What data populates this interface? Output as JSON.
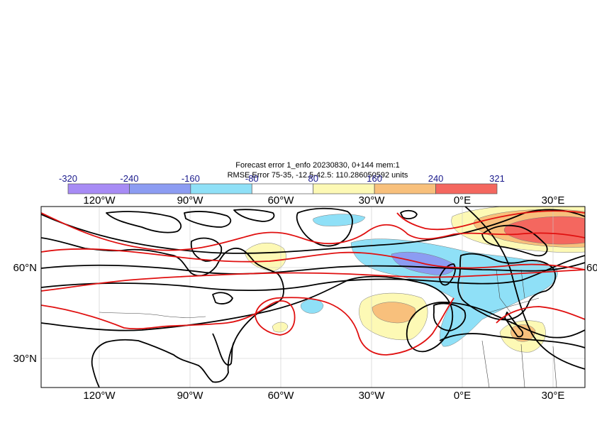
{
  "title": {
    "line1": "Forecast error  1_enfo 20230830, 0+144 mem:1",
    "line2": "RMSE Error 75-35, -12.5-42.5: 110.286050592 units"
  },
  "colorbar": {
    "labels": [
      "-320",
      "-240",
      "-160",
      "-80",
      "80",
      "160",
      "240",
      "321"
    ],
    "colors": [
      "#a78bf5",
      "#8c9cf2",
      "#8fe0f7",
      "#ffffff",
      "#fdf9b5",
      "#f8c07c",
      "#f4675f"
    ]
  },
  "axes": {
    "x_ticks_top": [
      "120°W",
      "90°W",
      "60°W",
      "30°W",
      "0°E",
      "30°E"
    ],
    "x_ticks_bottom": [
      "120°W",
      "90°W",
      "60°W",
      "30°W",
      "0°E",
      "30°E"
    ],
    "y_ticks_left": [
      "60°N",
      "30°N"
    ],
    "y_ticks_right": [
      "60"
    ]
  },
  "colors": {
    "contour_black": "#000000",
    "contour_red": "#e01010",
    "grid": "#c8c8c8",
    "coast": "#000000",
    "border": "#444444"
  },
  "icons": {
    "map": "weather-forecast-error-map"
  }
}
